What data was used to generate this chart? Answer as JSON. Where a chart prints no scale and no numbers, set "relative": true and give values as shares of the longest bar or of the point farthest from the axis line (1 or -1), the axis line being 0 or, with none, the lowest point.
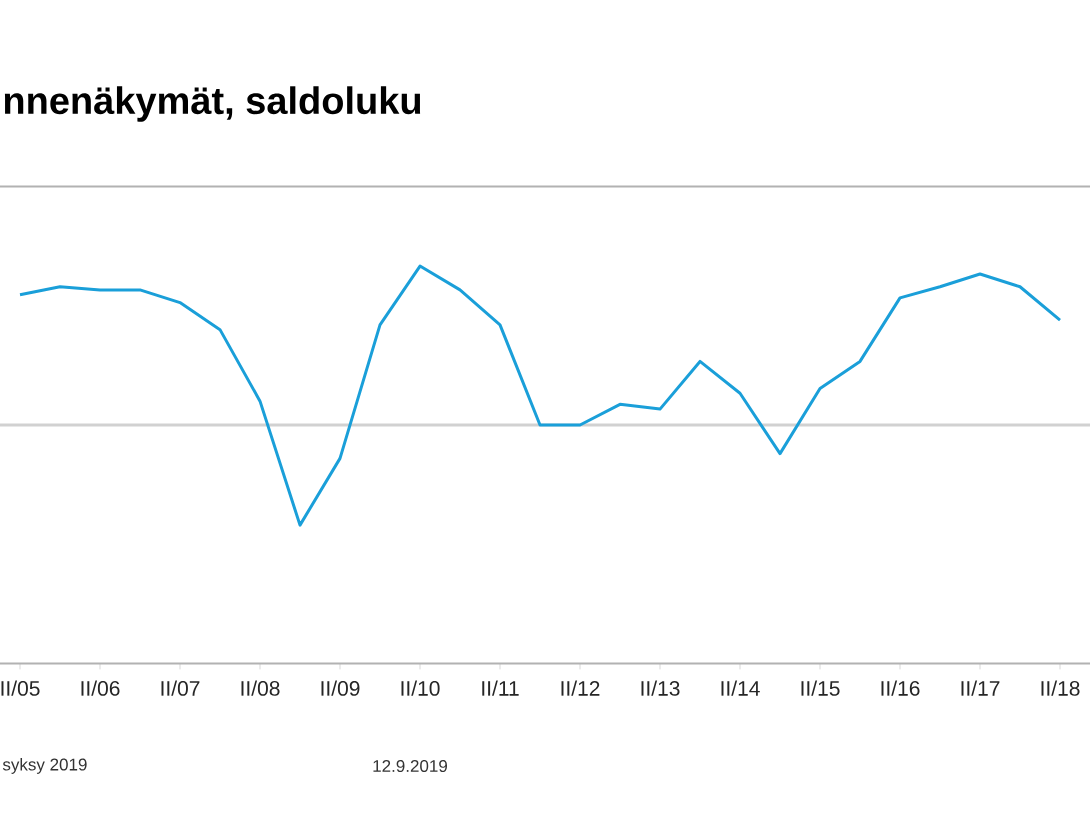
{
  "chart_data": {
    "type": "line",
    "title": "nnenäkymät, saldoluku",
    "relative": true,
    "color": "#1a9fd9",
    "categories": [
      "II/05",
      null,
      "II/06",
      null,
      "II/07",
      null,
      "II/08",
      null,
      "II/09",
      null,
      "II/10",
      null,
      "II/11",
      null,
      "II/12",
      null,
      "II/13",
      null,
      "II/14",
      null,
      "II/15",
      null,
      "II/16",
      null,
      "II/17",
      null,
      "II/18"
    ],
    "values": [
      0.82,
      0.87,
      0.85,
      0.85,
      0.77,
      0.6,
      0.15,
      -0.63,
      -0.21,
      0.63,
      1,
      0.85,
      0.63,
      0,
      0,
      0.13,
      0.1,
      0.4,
      0.2,
      -0.18,
      0.23,
      0.4,
      0.8,
      0.87,
      0.95,
      0.87,
      0.66
    ],
    "annotations": [
      "syksy 2019",
      "12.9.2019"
    ]
  }
}
